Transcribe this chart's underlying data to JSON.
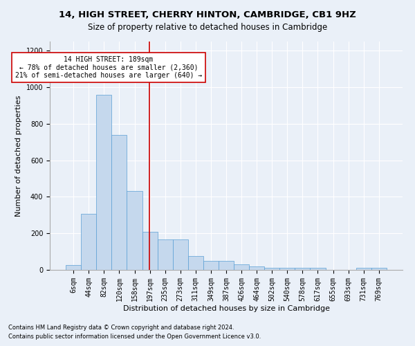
{
  "title1": "14, HIGH STREET, CHERRY HINTON, CAMBRIDGE, CB1 9HZ",
  "title2": "Size of property relative to detached houses in Cambridge",
  "xlabel": "Distribution of detached houses by size in Cambridge",
  "ylabel": "Number of detached properties",
  "categories": [
    "6sqm",
    "44sqm",
    "82sqm",
    "120sqm",
    "158sqm",
    "197sqm",
    "235sqm",
    "273sqm",
    "311sqm",
    "349sqm",
    "387sqm",
    "426sqm",
    "464sqm",
    "502sqm",
    "540sqm",
    "578sqm",
    "617sqm",
    "655sqm",
    "693sqm",
    "731sqm",
    "769sqm"
  ],
  "values": [
    25,
    305,
    960,
    740,
    430,
    210,
    165,
    165,
    75,
    48,
    48,
    30,
    18,
    10,
    10,
    10,
    10,
    0,
    0,
    10,
    10
  ],
  "bar_color": "#c5d8ed",
  "bar_edge_color": "#5a9fd4",
  "vline_x": 4.97,
  "vline_color": "#cc0000",
  "annotation_text": "14 HIGH STREET: 189sqm\n← 78% of detached houses are smaller (2,360)\n21% of semi-detached houses are larger (640) →",
  "annotation_box_color": "#ffffff",
  "annotation_box_edge": "#cc0000",
  "ylim": [
    0,
    1250
  ],
  "yticks": [
    0,
    200,
    400,
    600,
    800,
    1000,
    1200
  ],
  "footnote1": "Contains HM Land Registry data © Crown copyright and database right 2024.",
  "footnote2": "Contains public sector information licensed under the Open Government Licence v3.0.",
  "bg_color": "#eaf0f8",
  "grid_color": "#ffffff",
  "title1_fontsize": 9.5,
  "title2_fontsize": 8.5,
  "xlabel_fontsize": 8,
  "ylabel_fontsize": 8,
  "tick_fontsize": 7,
  "footnote_fontsize": 6,
  "annot_fontsize": 7
}
